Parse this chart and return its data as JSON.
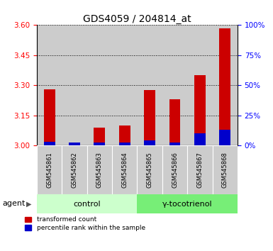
{
  "title": "GDS4059 / 204814_at",
  "samples": [
    "GSM545861",
    "GSM545862",
    "GSM545863",
    "GSM545864",
    "GSM545865",
    "GSM545866",
    "GSM545867",
    "GSM545868"
  ],
  "red_values": [
    3.28,
    3.005,
    3.09,
    3.1,
    3.275,
    3.23,
    3.35,
    3.585
  ],
  "blue_values": [
    3.02,
    3.015,
    3.015,
    3.015,
    3.025,
    3.015,
    3.06,
    3.08
  ],
  "ylim_left": [
    3.0,
    3.6
  ],
  "yticks_left": [
    3.0,
    3.15,
    3.3,
    3.45,
    3.6
  ],
  "yticks_right": [
    0,
    25,
    50,
    75,
    100
  ],
  "ylim_right": [
    0,
    100
  ],
  "group_labels": [
    "control",
    "γ-tocotrienol"
  ],
  "group_colors": [
    "#ccffcc",
    "#77ee77"
  ],
  "bar_bg_color": "#cccccc",
  "agent_label": "agent",
  "legend_red": "transformed count",
  "legend_blue": "percentile rank within the sample",
  "red_color": "#cc0000",
  "blue_color": "#0000cc",
  "title_fontsize": 10,
  "tick_fontsize": 7.5,
  "sample_fontsize": 6,
  "group_fontsize": 8,
  "legend_fontsize": 6.5
}
